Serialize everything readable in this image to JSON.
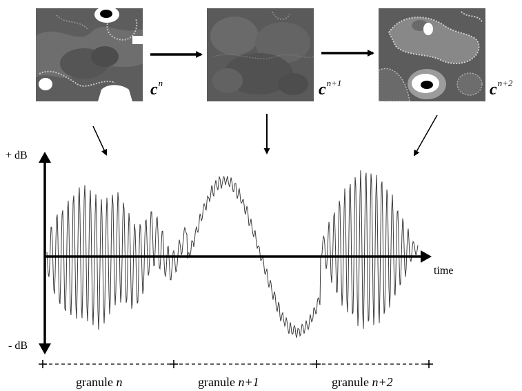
{
  "states": [
    {
      "base": "c",
      "superscript": "n"
    },
    {
      "base": "c",
      "superscript": "n+1"
    },
    {
      "base": "c",
      "superscript": "n+2"
    }
  ],
  "axis": {
    "y_top": "+ dB",
    "y_bottom": "- dB",
    "x_label": "time"
  },
  "granules": [
    {
      "word": "granule",
      "index": "n"
    },
    {
      "word": "granule",
      "index": "n+1"
    },
    {
      "word": "granule",
      "index": "n+2"
    }
  ],
  "colors": {
    "tile_background": "#5a5a5a",
    "tile_mid": "#7a7a7a",
    "tile_dotted": "#bdbdbd",
    "waveform": "#3a3a3a",
    "ink": "#000000"
  }
}
